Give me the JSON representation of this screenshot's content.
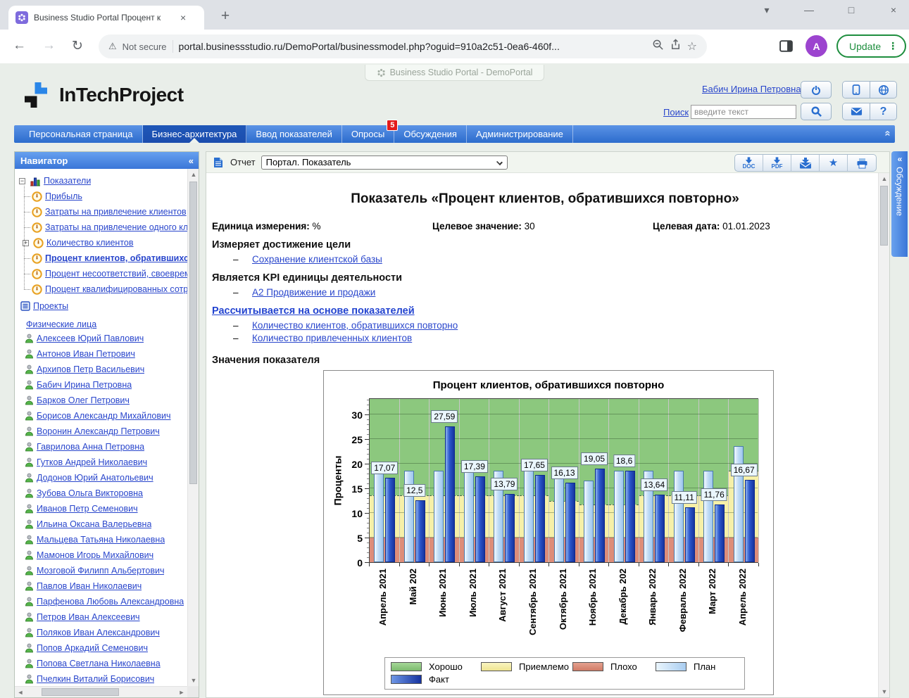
{
  "icons": {
    "back": "←",
    "forward": "→",
    "reload": "↻",
    "kebab": "⋮",
    "close": "×",
    "minimize": "—",
    "maximize": "□",
    "chevron_down": "▾",
    "new_tab": "+",
    "collapse_left": "«",
    "scroll_up": "▲",
    "scroll_down": "▼",
    "scroll_left": "◄",
    "scroll_right": "►",
    "bookmark_star": "☆",
    "favorite_star": "★",
    "question": "?",
    "dash": "–",
    "warning": "⚠",
    "tree_collapse": "−",
    "tree_expand": "+"
  },
  "browser": {
    "tab_title": "Business Studio Portal Процент к",
    "not_secure": "Not secure",
    "url": "portal.businessstudio.ru/DemoPortal/businessmodel.php?oguid=910a2c51-0ea6-460f...",
    "update_label": "Update",
    "avatar_letter": "A"
  },
  "portal": {
    "banner": "Business Studio Portal - DemoPortal",
    "logo_text": "InTechProject",
    "user_link": "Бабич Ирина Петровна",
    "search_label": "Поиск",
    "search_placeholder": "введите текст",
    "discussion_tab": "Обсуждение",
    "nav_items": [
      {
        "label": "Персональная страница"
      },
      {
        "label": "Бизнес-архитектура",
        "active": true
      },
      {
        "label": "Ввод показателей"
      },
      {
        "label": "Опросы",
        "badge": "5"
      },
      {
        "label": "Обсуждения"
      },
      {
        "label": "Администрирование"
      }
    ]
  },
  "navigator": {
    "title": "Навигатор",
    "tree": {
      "root_label": "Показатели",
      "children": [
        {
          "label": "Прибыль"
        },
        {
          "label": "Затраты на привлечение клиентов"
        },
        {
          "label": "Затраты на привлечение одного клие"
        },
        {
          "label": "Количество клиентов",
          "expandable": true
        },
        {
          "label": "Процент клиентов, обратившихся",
          "selected": true
        },
        {
          "label": "Процент несоответствий, своевреме"
        },
        {
          "label": "Процент квалифицированных сотруд"
        }
      ],
      "projects_label": "Проекты"
    },
    "persons_header": "Физические лица",
    "persons": [
      "Алексеев Юрий Павлович",
      "Антонов Иван Петрович",
      "Архипов Петр Васильевич",
      "Бабич Ирина Петровна",
      "Барков Олег Петрович",
      "Борисов Александр Михайлович",
      "Воронин Александр Петрович",
      "Гаврилова Анна Петровна",
      "Гутков Андрей Николаевич",
      "Додонов Юрий Анатольевич",
      "Зубова Ольга Викторовна",
      "Иванов Петр Семенович",
      "Ильина Оксана Валерьевна",
      "Мальцева Татьяна Николаевна",
      "Мамонов Игорь Михайлович",
      "Мозговой Филипп Альбертович",
      "Павлов Иван Николаевич",
      "Парфенова Любовь Александровна",
      "Петров Иван Алексеевич",
      "Поляков Иван Александрович",
      "Попов Аркадий Семенович",
      "Попова Светлана Николаевна",
      "Пчелкин Виталий Борисович"
    ]
  },
  "report": {
    "toolbar_label": "Отчет",
    "select_value": "Портал. Показатель",
    "export_buttons": [
      "DOC",
      "PDF"
    ],
    "title": "Показатель «Процент клиентов, обратившихся повторно»",
    "meta": [
      {
        "label": "Единица измерения:",
        "value": "%"
      },
      {
        "label": "Целевое значение:",
        "value": "30"
      },
      {
        "label": "Целевая дата:",
        "value": "01.01.2023"
      }
    ],
    "sections": [
      {
        "heading": "Измеряет достижение цели",
        "style": "plain",
        "links": [
          "Сохранение клиентской базы"
        ]
      },
      {
        "heading": "Является KPI единицы деятельности",
        "style": "plain",
        "links": [
          "А2 Продвижение и продажи"
        ]
      },
      {
        "heading": "Рассчитывается на основе показателей",
        "style": "link",
        "links": [
          "Количество клиентов, обратившихся повторно",
          "Количество привлеченных клиентов"
        ]
      }
    ],
    "values_heading": "Значения показателя"
  },
  "chart_data": {
    "type": "bar",
    "title": "Процент клиентов, обратившихся повторно",
    "ylabel": "Проценты",
    "ylim": [
      0,
      33.4
    ],
    "yticks": [
      0,
      5,
      10,
      15,
      20,
      25,
      30
    ],
    "grid": true,
    "legend_position": "bottom",
    "categories": [
      "Апрель 2021",
      "Май 202",
      "Июнь 2021",
      "Июль 2021",
      "Август 2021",
      "Сентябрь 2021",
      "Октябрь 2021",
      "Ноябрь 2021",
      "Декабрь 202",
      "Январь 2022",
      "Февраль 2022",
      "Март 2022",
      "Апрель 2022"
    ],
    "series": [
      {
        "name": "План",
        "values": [
          18.2,
          18.5,
          18.5,
          18.3,
          18.5,
          18.5,
          17.2,
          16.5,
          18.5,
          18.5,
          18.5,
          18.5,
          23.5
        ]
      },
      {
        "name": "Факт",
        "values": [
          17.07,
          12.5,
          27.59,
          17.39,
          13.79,
          17.65,
          16.13,
          19.05,
          18.6,
          13.64,
          11.11,
          11.76,
          16.67
        ]
      }
    ],
    "fact_labels": [
      "17,07",
      "12,5",
      "27,59",
      "17,39",
      "13,79",
      "17,65",
      "16,13",
      "19,05",
      "18,6",
      "13,64",
      "11,11",
      "11,76",
      "16,67"
    ],
    "zones": {
      "bad_from": 0,
      "bad_to": 5,
      "acceptable_to_by_month": [
        13.6,
        13.6,
        13.6,
        13.6,
        13.6,
        13.6,
        12.4,
        11.7,
        11.7,
        13.6,
        13.6,
        13.6,
        18.5
      ],
      "colors": {
        "good": "#8cc87e",
        "acceptable": "#f6f0a8",
        "bad": "#dd8d79"
      }
    },
    "plan_color": "#aed3f2",
    "fact_color": "#2a52c0",
    "legend": [
      {
        "label": "Хорошо",
        "color": "#8cc87e"
      },
      {
        "label": "Приемлемо",
        "color": "#f6f0a8"
      },
      {
        "label": "Плохо",
        "color": "#dd8d79"
      },
      {
        "label": "План",
        "color": "#aed3f2"
      },
      {
        "label": "Факт",
        "color": "#2a52c0"
      }
    ]
  }
}
